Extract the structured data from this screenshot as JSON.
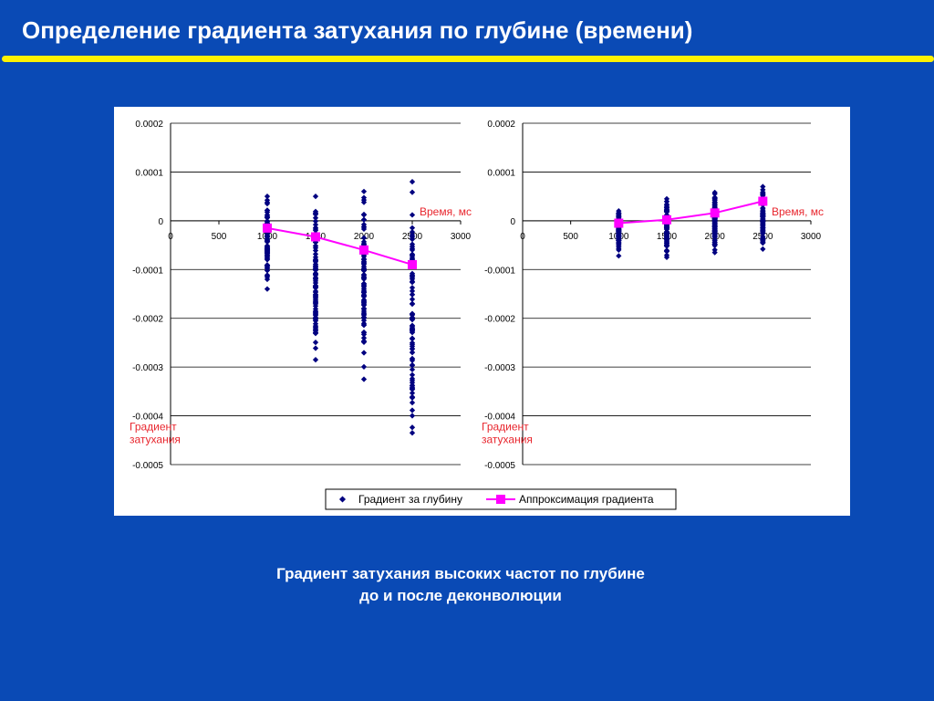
{
  "slide": {
    "title": "Определение градиента затухания по глубине (времени)",
    "caption_line1": "Градиент затухания высоких частот по глубине",
    "caption_line2": "до и после деконволюции"
  },
  "colors": {
    "background": "#0a4ab5",
    "title_rule": "#fff200",
    "scatter": "#000080",
    "approx": "#ff00ff",
    "axis_note": "#e8262e"
  },
  "legend": {
    "scatter_label": "Градиент за глубину",
    "line_label": "Аппроксимация градиента"
  },
  "chart_data": [
    {
      "type": "scatter",
      "title": "",
      "xlabel": "Время, мс",
      "ylabel": "Градиент затухания",
      "xlim": [
        0,
        3000
      ],
      "ylim": [
        -0.0005,
        0.0002
      ],
      "x_ticks": [
        "0",
        "500",
        "1000",
        "1500",
        "2000",
        "2500",
        "3000"
      ],
      "y_ticks": [
        "0.0002",
        "0.0001",
        "0",
        "-0.0001",
        "-0.0002",
        "-0.0003",
        "-0.0004",
        "-0.0005"
      ],
      "grid": true,
      "series": [
        {
          "name": "Градиент за глубину",
          "kind": "scatter",
          "groups": [
            {
              "x": 1000,
              "y_min": -0.00014,
              "y_max": 5e-05
            },
            {
              "x": 1500,
              "y_min": -0.000285,
              "y_max": 5e-05
            },
            {
              "x": 2000,
              "y_min": -0.000325,
              "y_max": 6e-05
            },
            {
              "x": 2500,
              "y_min": -0.000435,
              "y_max": 8e-05
            }
          ]
        },
        {
          "name": "Аппроксимация градиента",
          "kind": "line",
          "x": [
            1000,
            1500,
            2000,
            2500
          ],
          "y": [
            -1.5e-05,
            -3.3e-05,
            -6e-05,
            -9e-05
          ]
        }
      ]
    },
    {
      "type": "scatter",
      "title": "",
      "xlabel": "Время, мс",
      "ylabel": "Градиент затухания",
      "xlim": [
        0,
        3000
      ],
      "ylim": [
        -0.0005,
        0.0002
      ],
      "x_ticks": [
        "0",
        "500",
        "1000",
        "1500",
        "2000",
        "2500",
        "3000"
      ],
      "y_ticks": [
        "0.0002",
        "0.0001",
        "0",
        "-0.0001",
        "-0.0002",
        "-0.0003",
        "-0.0004",
        "-0.0005"
      ],
      "grid": true,
      "series": [
        {
          "name": "Градиент за глубину",
          "kind": "scatter",
          "groups": [
            {
              "x": 1000,
              "y_min": -7.2e-05,
              "y_max": 2e-05
            },
            {
              "x": 1500,
              "y_min": -7.5e-05,
              "y_max": 4.5e-05
            },
            {
              "x": 2000,
              "y_min": -6.5e-05,
              "y_max": 5.8e-05
            },
            {
              "x": 2500,
              "y_min": -5.8e-05,
              "y_max": 7e-05
            }
          ]
        },
        {
          "name": "Аппроксимация градиента",
          "kind": "line",
          "x": [
            1000,
            1500,
            2000,
            2500
          ],
          "y": [
            -5e-06,
            2e-06,
            1.6e-05,
            4e-05
          ]
        }
      ]
    }
  ]
}
